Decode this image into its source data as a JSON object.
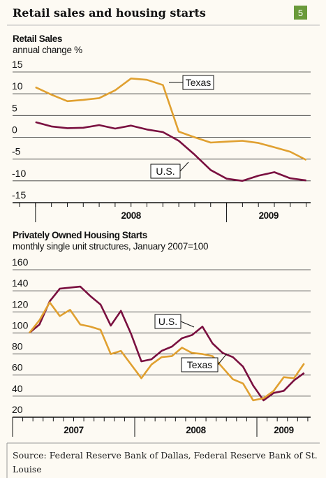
{
  "header": {
    "title": "Retail sales and housing starts",
    "badge": "5"
  },
  "source": "Source:  Federal Reserve Bank of Dallas,  Federal Reserve Bank of St. Louise",
  "chart_data": [
    {
      "type": "line",
      "title": "Retail Sales",
      "subtitle": "annual change %",
      "x": [
        2008.0,
        2008.083,
        2008.167,
        2008.25,
        2008.333,
        2008.417,
        2008.5,
        2008.583,
        2008.667,
        2008.75,
        2008.833,
        2008.917,
        2009.0,
        2009.083,
        2009.167,
        2009.25,
        2009.333,
        2009.417
      ],
      "series": [
        {
          "name": "Texas",
          "color": "#e0a030",
          "values": [
            11.5,
            9.8,
            8.3,
            8.6,
            9.0,
            10.8,
            13.5,
            13.2,
            12.0,
            1.3,
            0,
            -1.2,
            -1.0,
            -0.8,
            -1.3,
            -2.3,
            -3.3,
            -5.2
          ]
        },
        {
          "name": "U.S.",
          "color": "#7a1040",
          "values": [
            3.5,
            2.5,
            2.1,
            2.2,
            2.8,
            2.0,
            2.7,
            1.8,
            1.2,
            -0.8,
            -4.0,
            -7.5,
            -9.5,
            -10.0,
            -8.8,
            -8.0,
            -9.4,
            -9.9
          ]
        }
      ],
      "xlim": [
        2007.88,
        2009.44
      ],
      "xticks": [
        2008,
        2009
      ],
      "ylim": [
        -15,
        15
      ],
      "yticks": [
        -15,
        -10,
        -5,
        0,
        5,
        10,
        15
      ],
      "grid": true
    },
    {
      "type": "line",
      "title": "Privately Owned Housing Starts",
      "subtitle": "monthly single unit structures, January 2007=100",
      "x": [
        2007.137,
        2007.22,
        2007.304,
        2007.387,
        2007.47,
        2007.554,
        2007.637,
        2007.72,
        2007.804,
        2007.887,
        2007.97,
        2008.054,
        2008.137,
        2008.22,
        2008.304,
        2008.387,
        2008.47,
        2008.554,
        2008.637,
        2008.72,
        2008.804,
        2008.887,
        2008.97,
        2009.054,
        2009.137,
        2009.22,
        2009.304,
        2009.387
      ],
      "series": [
        {
          "name": "U.S.",
          "color": "#7a1040",
          "values": [
            100,
            108,
            130,
            142,
            143,
            144,
            135,
            127,
            107,
            121,
            99,
            73,
            75,
            83,
            87,
            95,
            98,
            106,
            90,
            81,
            77,
            68,
            50,
            36,
            43,
            45,
            55,
            62
          ]
        },
        {
          "name": "Texas",
          "color": "#e0a030",
          "values": [
            100,
            112,
            129,
            116,
            122,
            108,
            106,
            103,
            80,
            83,
            70,
            57,
            70,
            77,
            78,
            86,
            81,
            80,
            78,
            67,
            56,
            52,
            36,
            38,
            45,
            58,
            57,
            71
          ]
        }
      ],
      "xlim": [
        2007.0,
        2009.44
      ],
      "xticks": [
        2007,
        2008,
        2009
      ],
      "ylim": [
        20,
        160
      ],
      "yticks": [
        20,
        40,
        60,
        80,
        100,
        120,
        140,
        160
      ],
      "grid": true
    }
  ]
}
